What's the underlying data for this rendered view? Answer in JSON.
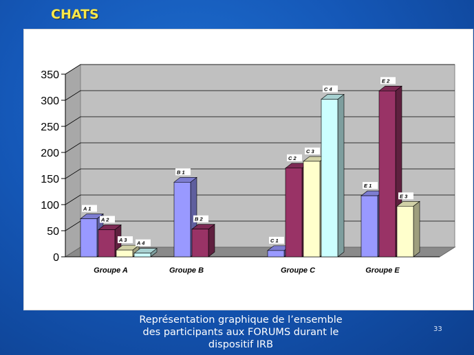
{
  "slide": {
    "title": "CHATS",
    "caption_lines": [
      "Représentation graphique de l’ensemble",
      "des participants  aux FORUMS durant le",
      "dispositif IRB"
    ],
    "page_number": "33"
  },
  "chart_data": {
    "type": "bar",
    "title": "",
    "xlabel": "",
    "ylabel": "",
    "ylim": [
      0,
      350
    ],
    "ytick_step": 50,
    "grid": true,
    "style": "3d-clustered",
    "categories": [
      "Groupe A",
      "Groupe B",
      "Groupe C",
      "Groupe E"
    ],
    "bars": [
      {
        "category": "Groupe A",
        "label": "A 1",
        "value": 73,
        "color": "#9999ff"
      },
      {
        "category": "Groupe A",
        "label": "A 2",
        "value": 52,
        "color": "#993366"
      },
      {
        "category": "Groupe A",
        "label": "A 3",
        "value": 13,
        "color": "#ffffcc"
      },
      {
        "category": "Groupe A",
        "label": "A 4",
        "value": 7,
        "color": "#ccffff"
      },
      {
        "category": "Groupe B",
        "label": "B 1",
        "value": 143,
        "color": "#9999ff"
      },
      {
        "category": "Groupe B",
        "label": "B 2",
        "value": 53,
        "color": "#993366"
      },
      {
        "category": "Groupe C",
        "label": "C 1",
        "value": 12,
        "color": "#9999ff"
      },
      {
        "category": "Groupe C",
        "label": "C 2",
        "value": 170,
        "color": "#993366"
      },
      {
        "category": "Groupe C",
        "label": "C 3",
        "value": 183,
        "color": "#ffffcc"
      },
      {
        "category": "Groupe C",
        "label": "C 4",
        "value": 302,
        "color": "#ccffff"
      },
      {
        "category": "Groupe E",
        "label": "E 1",
        "value": 117,
        "color": "#9999ff"
      },
      {
        "category": "Groupe E",
        "label": "E 2",
        "value": 318,
        "color": "#993366"
      },
      {
        "category": "Groupe E",
        "label": "E 3",
        "value": 97,
        "color": "#ffffcc"
      }
    ]
  }
}
